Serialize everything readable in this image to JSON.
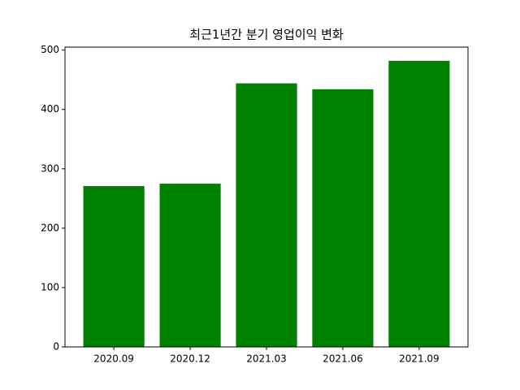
{
  "chart_data": {
    "type": "bar",
    "title": "최근1년간 분기 영업이익 변화",
    "categories": [
      "2020.09",
      "2020.12",
      "2021.03",
      "2021.06",
      "2021.09"
    ],
    "values": [
      271,
      275,
      444,
      434,
      482
    ],
    "color": "#008000",
    "ylim": [
      0,
      505
    ],
    "yticks": [
      0,
      100,
      200,
      300,
      400,
      500
    ],
    "grid": false
  }
}
